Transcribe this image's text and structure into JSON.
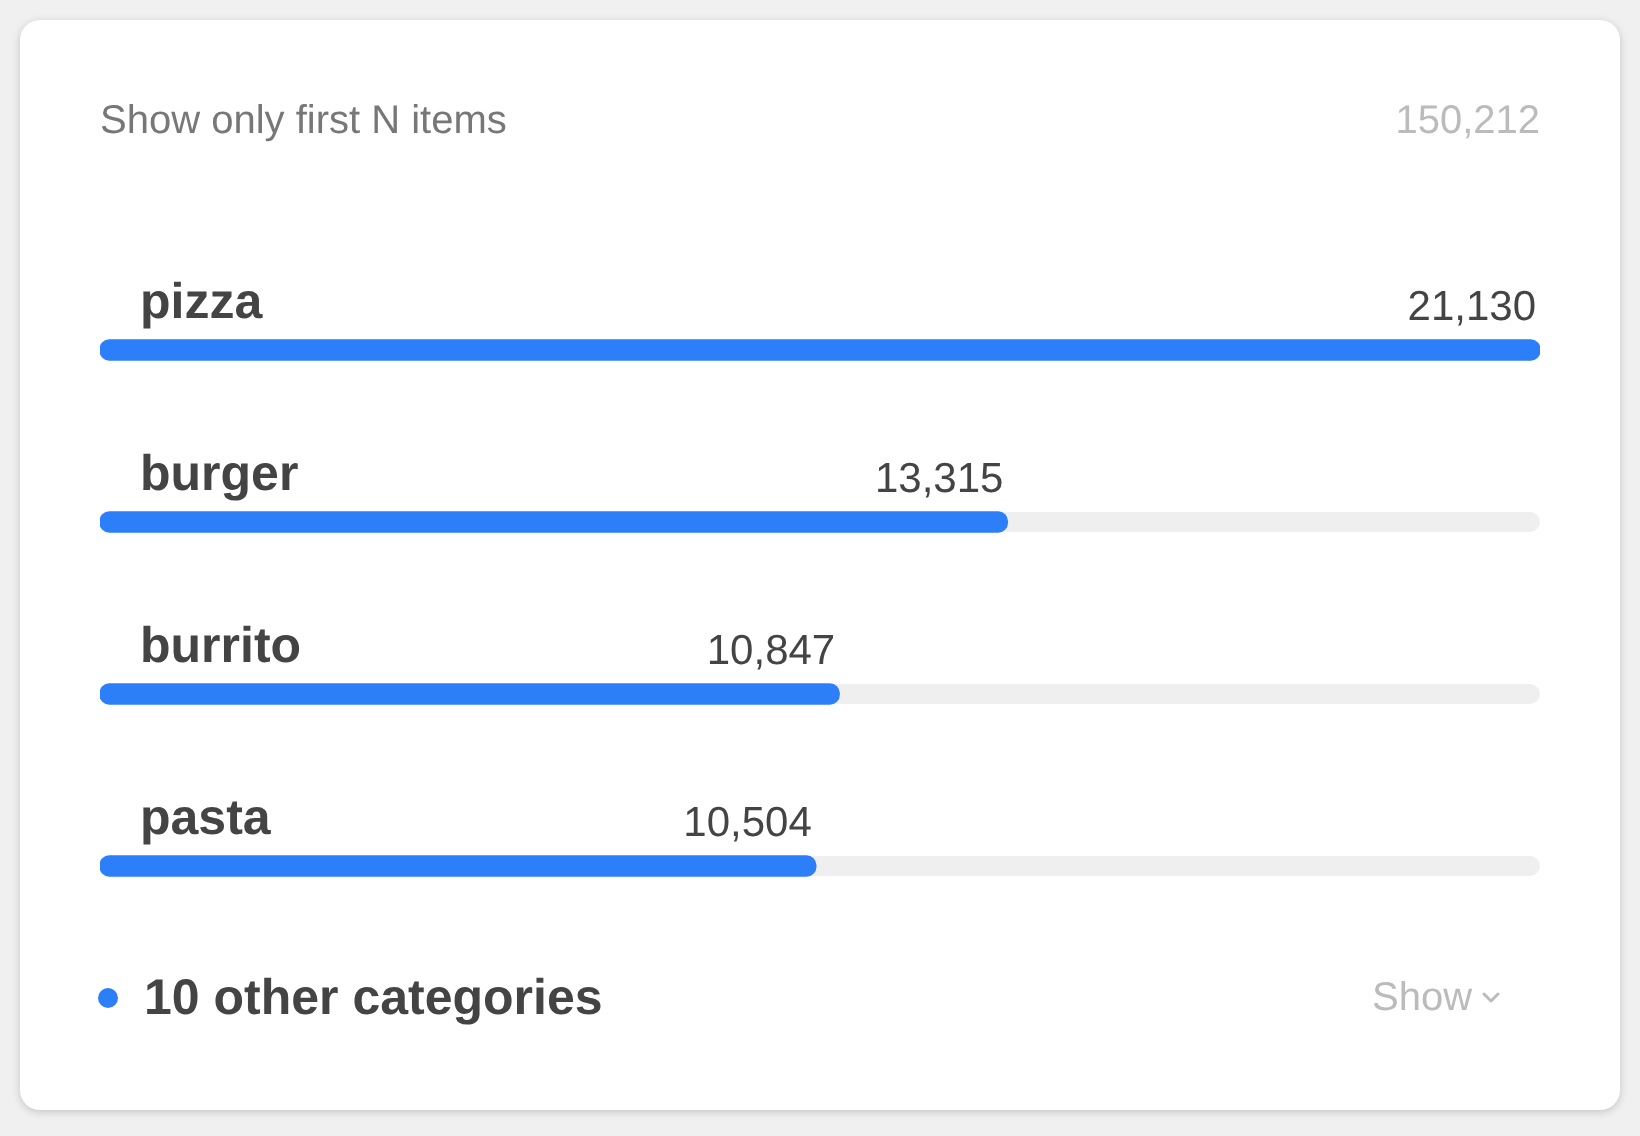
{
  "chart_data": {
    "type": "bar",
    "orientation": "horizontal",
    "title": "Show only first N items",
    "categories": [
      "pizza",
      "burger",
      "burrito",
      "pasta"
    ],
    "values": [
      21130,
      13315,
      10847,
      10504
    ],
    "value_labels": [
      "21,130",
      "13,315",
      "10,847",
      "10,504"
    ],
    "color": "#2d7ff9",
    "tick_labels": "y",
    "annotations": [
      "150,212",
      "10 other categories",
      "Show"
    ]
  }
}
